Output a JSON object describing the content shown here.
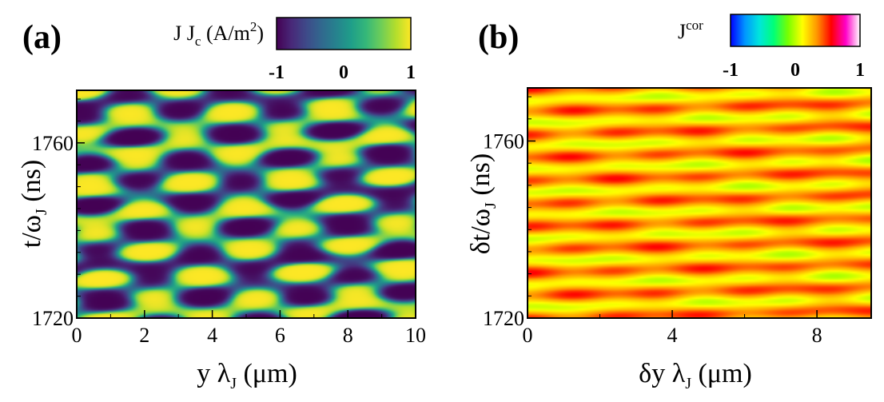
{
  "chart_data": [
    {
      "type": "heatmap",
      "panel_label": "(a)",
      "colormap": "viridis",
      "colorbar": {
        "title_parts": [
          "J J",
          "c",
          " (A/m",
          "2",
          ")"
        ],
        "ticks": [
          -1,
          0,
          1
        ],
        "tick_labels": [
          "-1",
          "0",
          "1"
        ],
        "range": [
          -1,
          1
        ]
      },
      "xlabel_parts": [
        "y λ",
        "J",
        " (μm)"
      ],
      "ylabel_parts": [
        "t/ω",
        "J",
        " (ns)"
      ],
      "xlim": [
        0,
        10
      ],
      "ylim": [
        1720,
        1772
      ],
      "xticks": [
        0,
        2,
        4,
        6,
        8,
        10
      ],
      "xtick_labels": [
        "0",
        "2",
        "4",
        "6",
        "8",
        "10"
      ],
      "yticks": [
        1720,
        1760
      ],
      "ytick_labels": [
        "1720",
        "1760"
      ],
      "field_pattern": "crossing_standing_waves",
      "waves": [
        {
          "kx": 2.2,
          "kt": 0.55,
          "amp": 0.9
        },
        {
          "kx": -2.0,
          "kt": 0.62,
          "amp": 0.8
        },
        {
          "kx": 0.3,
          "kt": 0.85,
          "amp": 0.5
        }
      ]
    },
    {
      "type": "heatmap",
      "panel_label": "(b)",
      "colormap": "rainbow_white",
      "colorbar": {
        "title_parts": [
          "J",
          "cor"
        ],
        "ticks": [
          -1,
          0,
          1
        ],
        "tick_labels": [
          "-1",
          "0",
          "1"
        ],
        "range": [
          -1,
          1
        ]
      },
      "xlabel_parts": [
        "δy λ",
        "J",
        " (μm)"
      ],
      "ylabel_parts": [
        "δt/ω",
        "J",
        " (ns)"
      ],
      "xlim": [
        0,
        9.5
      ],
      "ylim": [
        1720,
        1772
      ],
      "xticks": [
        0,
        4,
        8
      ],
      "xtick_labels": [
        "0",
        "4",
        "8"
      ],
      "yticks": [
        1720,
        1760
      ],
      "ytick_labels": [
        "1720",
        "1760"
      ],
      "field_pattern": "weak_correlation_stripes",
      "value_range": [
        0.05,
        0.45
      ]
    }
  ]
}
